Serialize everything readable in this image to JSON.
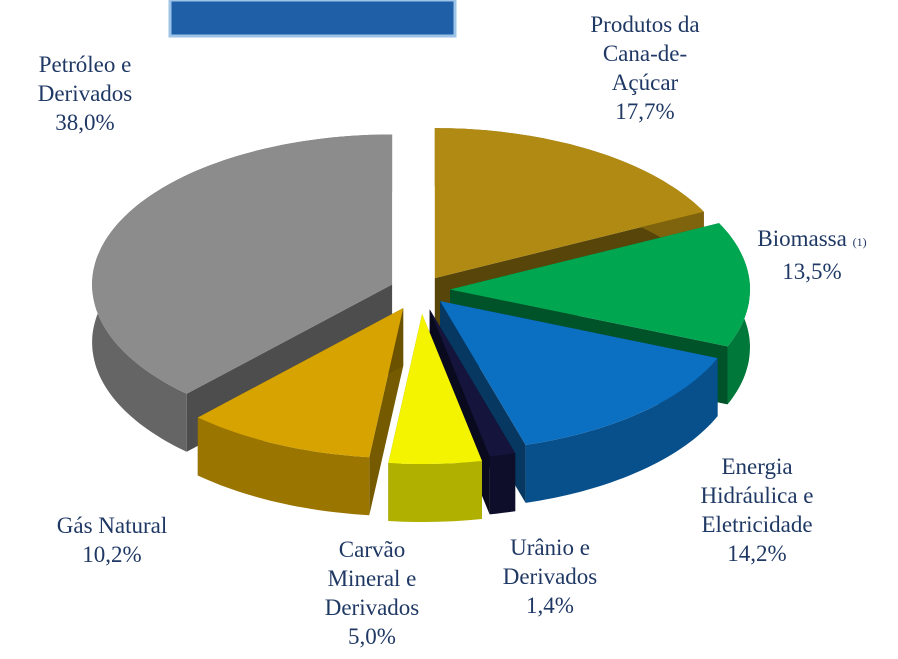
{
  "chart_data": {
    "type": "pie",
    "categories": [
      "Produtos da Cana-de-Açúcar",
      "Biomassa",
      "Energia Hidráulica e Eletricidade",
      "Urânio e Derivados",
      "Carvão Mineral e Derivados",
      "Gás Natural",
      "Petróleo e Derivados"
    ],
    "category_notes": [
      null,
      "(1)",
      null,
      null,
      null,
      null,
      null
    ],
    "values": [
      17.7,
      13.5,
      14.2,
      1.4,
      5.0,
      10.2,
      38.0
    ],
    "value_labels": [
      "17,7%",
      "13,5%",
      "14,2%",
      "1,4%",
      "5,0%",
      "10,2%",
      "38,0%"
    ],
    "colors": [
      "#b08a12",
      "#00a650",
      "#0b6fc2",
      "#14143c",
      "#f4f400",
      "#d6a300",
      "#8c8c8c"
    ]
  }
}
